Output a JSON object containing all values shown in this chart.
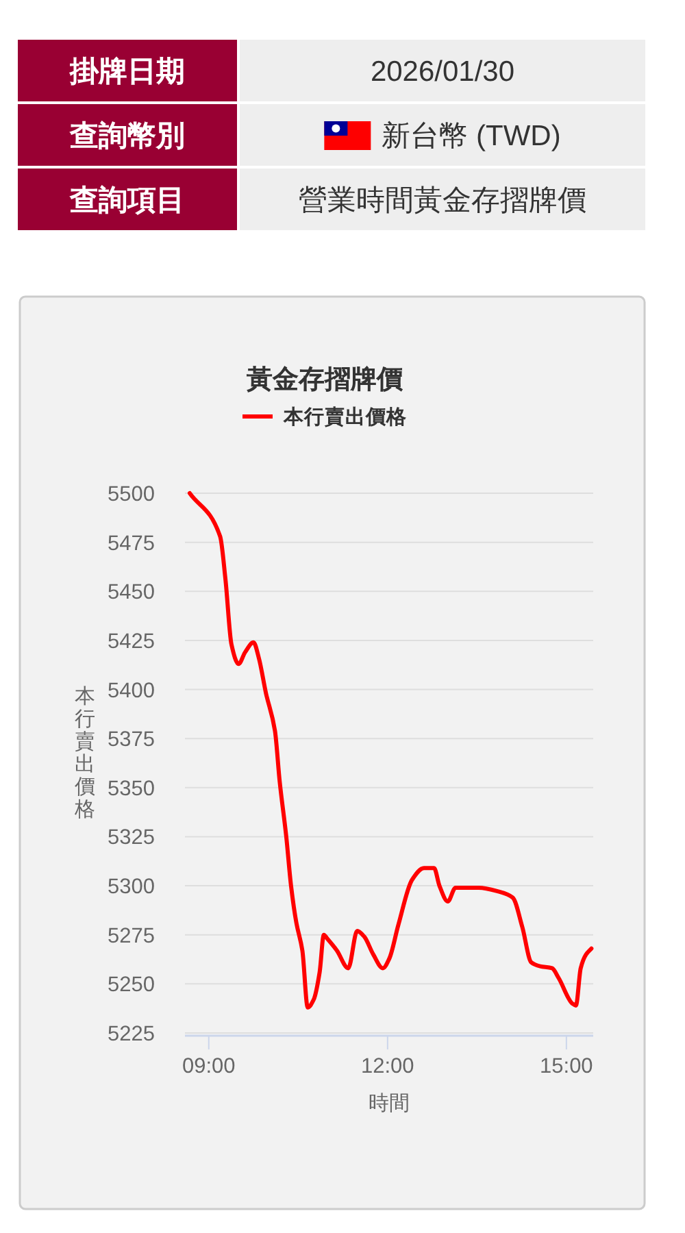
{
  "chart_data": {
    "type": "line",
    "title": "黃金存摺牌價",
    "xlabel": "時間",
    "ylabel": "本行賣出價格",
    "x": [
      8.68,
      9.19,
      9.28,
      9.38,
      9.5,
      9.61,
      9.75,
      9.84,
      9.96,
      10.11,
      10.19,
      10.3,
      10.38,
      10.47,
      10.57,
      10.66,
      10.76,
      10.86,
      10.93,
      10.99,
      11.15,
      11.34,
      11.49,
      11.61,
      11.76,
      11.92,
      12.03,
      12.18,
      12.41,
      12.61,
      12.78,
      12.87,
      13.01,
      13.14,
      13.53,
      13.87,
      14.1,
      14.26,
      14.41,
      14.56,
      14.76,
      14.87,
      15.1,
      15.16,
      15.24,
      15.33,
      15.42
    ],
    "series": [
      {
        "name": "本行賣出價格",
        "color": "#ff0000",
        "values": [
          5500,
          5478,
          5456,
          5423,
          5413,
          5419,
          5424,
          5416,
          5398,
          5379,
          5353,
          5325,
          5300,
          5281,
          5267,
          5238,
          5242,
          5256,
          5275,
          5273,
          5267,
          5258,
          5277,
          5274,
          5265,
          5258,
          5263,
          5280,
          5303,
          5309,
          5309,
          5300,
          5292,
          5299,
          5299,
          5297,
          5294,
          5279,
          5261,
          5259,
          5258,
          5253,
          5240,
          5239,
          5258,
          5265,
          5268
        ]
      }
    ],
    "xlim": [
      8.6,
      15.45
    ],
    "xticks": [
      {
        "value": 9,
        "label": "09:00"
      },
      {
        "value": 12,
        "label": "12:00"
      },
      {
        "value": 15,
        "label": "15:00"
      }
    ],
    "ylim": [
      5225,
      5500
    ],
    "yticks": [
      5225,
      5250,
      5275,
      5300,
      5325,
      5350,
      5375,
      5400,
      5425,
      5450,
      5475,
      5500
    ],
    "grid": "y",
    "legend": "top",
    "marker": "none",
    "line_style": "solid",
    "annotations": [
      "掛牌日期",
      "2026/01/30",
      "查詢幣別",
      "新台幣 (TWD)",
      "查詢項目",
      "營業時間黃金存摺牌價"
    ]
  }
}
